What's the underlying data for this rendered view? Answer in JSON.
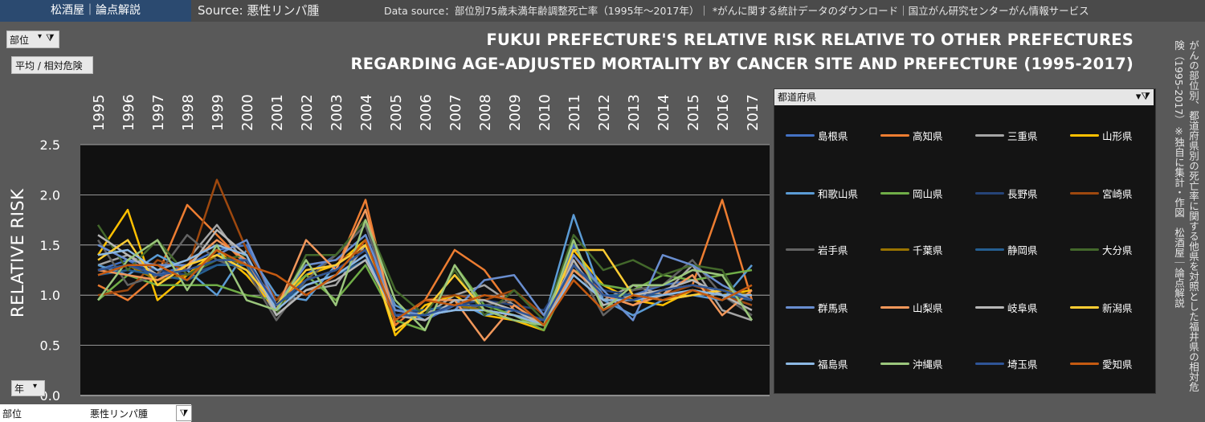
{
  "header": {
    "brand": "松酒屋｜論点解説",
    "source": "Source: 悪性リンパ腫",
    "data_source": "Data source：部位別75歳未満年齢調整死亡率（1995年～2017年）｜ *がんに関する統計データのダウンロード｜国立がん研究センターがん情報サービス"
  },
  "controls": {
    "site_filter_label": "部位",
    "average_button": "平均 / 相対危険",
    "year_filter_label": "年",
    "bottom_filter_label": "部位",
    "bottom_filter_value": "悪性リンパ腫"
  },
  "side_note": "がんの部位別、都道府県別の死亡率に関する他県を対照とした福井県の相対危険（1995-2017）※独自に集計・作図　松酒屋｜論点解説",
  "legend": {
    "header": "都道府県"
  },
  "colors": {
    "plot_bg": "#111111",
    "panel_bg": "#595959",
    "brand_bg": "#2b4a70"
  },
  "chart_data": {
    "type": "line",
    "title": "FUKUI PREFECTURE'S RELATIVE RISK RELATIVE TO OTHER PREFECTURES",
    "subtitle": "REGARDING AGE-ADJUSTED MORTALITY BY CANCER SITE AND PREFECTURE (1995-2017)",
    "ylabel": "RELATIVE RISK",
    "xlabel": "",
    "ylim": [
      0,
      2.5
    ],
    "yticks": [
      "0.0",
      "0.5",
      "1.0",
      "1.5",
      "2.0",
      "2.5"
    ],
    "grid": true,
    "legend_position": "right",
    "x": [
      "1995",
      "1996",
      "1997",
      "1998",
      "1999",
      "2000",
      "2001",
      "2002",
      "2003",
      "2004",
      "2005",
      "2006",
      "2007",
      "2008",
      "2009",
      "2010",
      "2011",
      "2012",
      "2013",
      "2014",
      "2015",
      "2016",
      "2017"
    ],
    "series": [
      {
        "name": "島根県",
        "color": "#4472c4",
        "values": [
          1.25,
          1.35,
          1.2,
          1.3,
          1.45,
          1.5,
          0.9,
          1.2,
          1.4,
          1.7,
          0.8,
          0.75,
          0.9,
          0.85,
          0.8,
          0.75,
          1.5,
          1.0,
          1.0,
          1.1,
          1.15,
          1.0,
          0.9
        ]
      },
      {
        "name": "高知県",
        "color": "#ed7d31",
        "values": [
          1.1,
          0.95,
          1.2,
          1.9,
          1.6,
          1.3,
          0.95,
          1.15,
          1.25,
          1.95,
          0.7,
          0.95,
          1.45,
          1.25,
          0.85,
          0.7,
          1.4,
          1.0,
          0.9,
          1.05,
          1.1,
          1.95,
          0.95
        ]
      },
      {
        "name": "三重県",
        "color": "#a5a5a5",
        "values": [
          1.3,
          1.4,
          1.25,
          1.35,
          1.7,
          1.3,
          0.8,
          1.05,
          1.1,
          1.5,
          0.85,
          0.8,
          1.0,
          1.1,
          0.9,
          0.7,
          1.3,
          0.95,
          1.1,
          1.0,
          1.3,
          0.85,
          0.75
        ]
      },
      {
        "name": "山形県",
        "color": "#ffc000",
        "values": [
          1.4,
          1.85,
          0.95,
          1.2,
          1.45,
          1.2,
          0.85,
          1.2,
          1.3,
          1.55,
          0.6,
          0.9,
          1.0,
          0.8,
          0.75,
          0.65,
          1.45,
          1.1,
          0.95,
          0.9,
          1.05,
          1.0,
          1.05
        ]
      },
      {
        "name": "和歌山県",
        "color": "#5b9bd5",
        "values": [
          1.3,
          1.2,
          1.4,
          1.25,
          1.0,
          1.45,
          1.0,
          0.95,
          1.3,
          1.5,
          0.9,
          0.75,
          0.95,
          0.8,
          0.85,
          0.75,
          1.8,
          0.95,
          0.8,
          0.95,
          1.0,
          0.95,
          1.3
        ]
      },
      {
        "name": "岡山県",
        "color": "#70ad47",
        "values": [
          0.95,
          1.2,
          1.1,
          1.1,
          1.1,
          1.0,
          0.95,
          1.2,
          0.95,
          1.3,
          0.75,
          0.65,
          1.3,
          0.9,
          0.8,
          0.65,
          1.25,
          1.1,
          1.05,
          1.2,
          1.15,
          1.2,
          1.25
        ]
      },
      {
        "name": "長野県",
        "color": "#264478",
        "values": [
          1.2,
          1.3,
          1.25,
          1.2,
          1.3,
          1.35,
          0.9,
          1.1,
          1.2,
          1.4,
          0.8,
          0.85,
          0.9,
          0.95,
          0.9,
          0.85,
          1.3,
          1.05,
          1.0,
          1.05,
          1.1,
          1.0,
          0.95
        ]
      },
      {
        "name": "宮崎県",
        "color": "#9e480e",
        "values": [
          1.0,
          1.05,
          1.35,
          1.25,
          2.15,
          1.45,
          0.95,
          1.3,
          1.35,
          1.45,
          0.75,
          0.95,
          1.0,
          0.95,
          1.05,
          0.8,
          1.2,
          0.95,
          0.95,
          1.0,
          1.1,
          1.0,
          0.9
        ]
      },
      {
        "name": "岩手県",
        "color": "#636363",
        "values": [
          1.55,
          1.1,
          1.2,
          1.6,
          1.35,
          1.25,
          0.75,
          1.15,
          1.4,
          1.7,
          0.85,
          0.8,
          0.85,
          0.9,
          0.95,
          0.7,
          1.35,
          0.8,
          1.05,
          1.1,
          1.35,
          1.0,
          0.8
        ]
      },
      {
        "name": "千葉県",
        "color": "#997300",
        "values": [
          1.25,
          1.3,
          1.15,
          1.2,
          1.4,
          1.3,
          0.9,
          1.15,
          1.25,
          1.45,
          0.8,
          0.8,
          0.9,
          0.85,
          0.8,
          0.7,
          1.3,
          1.0,
          0.95,
          1.05,
          1.1,
          1.05,
          1.0
        ]
      },
      {
        "name": "静岡県",
        "color": "#255e91",
        "values": [
          1.2,
          1.25,
          1.2,
          1.15,
          1.3,
          1.3,
          0.9,
          1.1,
          1.2,
          1.35,
          0.85,
          0.85,
          0.9,
          0.9,
          0.85,
          0.75,
          1.25,
          1.0,
          1.0,
          1.0,
          1.05,
          1.0,
          0.95
        ]
      },
      {
        "name": "大分県",
        "color": "#43682b",
        "values": [
          1.7,
          1.25,
          1.55,
          1.2,
          1.35,
          1.4,
          0.8,
          1.4,
          1.4,
          1.75,
          1.05,
          0.8,
          1.25,
          0.8,
          1.05,
          0.75,
          1.6,
          1.25,
          1.35,
          1.2,
          1.3,
          1.25,
          0.75
        ]
      },
      {
        "name": "群馬県",
        "color": "#698ed0",
        "values": [
          1.5,
          1.35,
          1.3,
          1.3,
          1.4,
          1.55,
          0.9,
          1.3,
          1.35,
          1.6,
          0.85,
          0.8,
          0.85,
          1.15,
          1.2,
          0.8,
          1.4,
          1.05,
          0.75,
          1.4,
          1.3,
          1.1,
          0.95
        ]
      },
      {
        "name": "山梨県",
        "color": "#f1975a",
        "values": [
          1.25,
          1.2,
          1.15,
          1.3,
          1.55,
          1.35,
          0.85,
          1.55,
          1.25,
          1.85,
          0.75,
          0.95,
          0.95,
          0.55,
          0.9,
          0.7,
          1.25,
          1.0,
          0.9,
          1.0,
          1.2,
          0.8,
          1.05
        ]
      },
      {
        "name": "岐阜県",
        "color": "#b7b7b7",
        "values": [
          1.6,
          1.4,
          1.2,
          1.25,
          1.65,
          1.4,
          0.8,
          1.05,
          1.15,
          1.35,
          0.8,
          0.75,
          0.95,
          0.95,
          0.85,
          0.7,
          1.35,
          0.9,
          1.0,
          1.05,
          1.15,
          1.0,
          0.85
        ]
      },
      {
        "name": "新潟県",
        "color": "#ffcd33",
        "values": [
          1.35,
          1.55,
          1.1,
          1.3,
          1.4,
          1.25,
          0.9,
          1.25,
          1.3,
          1.5,
          0.65,
          0.85,
          1.2,
          0.85,
          0.8,
          0.7,
          1.45,
          1.45,
          1.0,
          0.95,
          1.0,
          1.05,
          0.95
        ]
      },
      {
        "name": "福島県",
        "color": "#8cb8e3",
        "values": [
          1.4,
          1.45,
          1.25,
          1.35,
          1.5,
          1.4,
          0.85,
          1.1,
          1.2,
          1.4,
          0.8,
          0.8,
          0.85,
          0.85,
          0.8,
          0.7,
          1.2,
          0.95,
          0.95,
          1.0,
          1.05,
          1.0,
          1.0
        ]
      },
      {
        "name": "沖縄県",
        "color": "#9bc67c",
        "values": [
          0.95,
          1.35,
          1.55,
          1.05,
          1.5,
          0.95,
          0.85,
          1.35,
          0.9,
          1.75,
          0.95,
          0.65,
          1.3,
          0.85,
          0.75,
          0.7,
          1.55,
          0.85,
          1.1,
          1.1,
          1.25,
          1.2,
          0.75
        ]
      },
      {
        "name": "埼玉県",
        "color": "#2f5597",
        "values": [
          1.25,
          1.3,
          1.2,
          1.25,
          1.35,
          1.35,
          0.9,
          1.15,
          1.25,
          1.45,
          0.8,
          0.8,
          0.9,
          0.9,
          0.85,
          0.75,
          1.3,
          1.0,
          0.95,
          1.05,
          1.1,
          1.05,
          0.95
        ]
      },
      {
        "name": "愛知県",
        "color": "#c55a11",
        "values": [
          1.2,
          1.3,
          1.3,
          1.15,
          1.45,
          1.3,
          1.2,
          1.0,
          1.2,
          1.55,
          0.75,
          0.95,
          0.9,
          1.0,
          0.95,
          0.7,
          1.15,
          0.85,
          1.0,
          0.95,
          1.05,
          0.95,
          1.1
        ]
      }
    ]
  }
}
